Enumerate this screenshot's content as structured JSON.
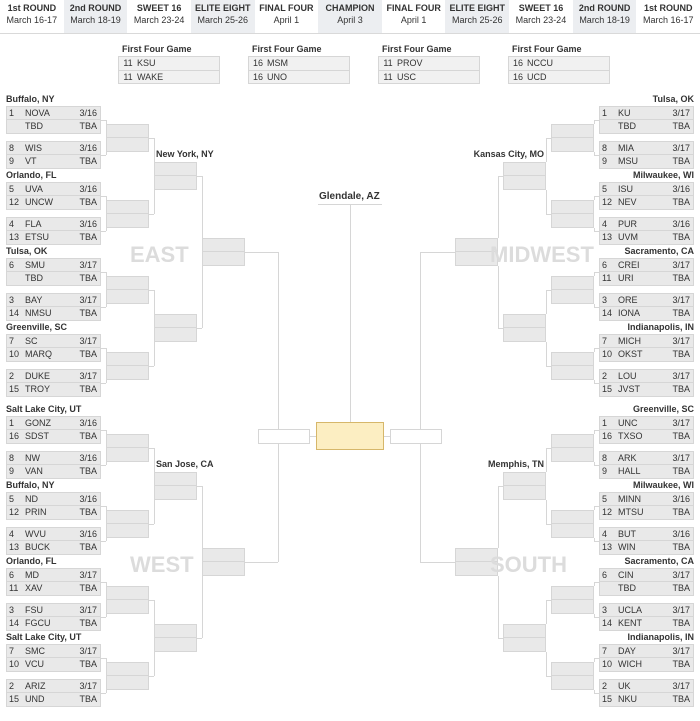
{
  "rounds": [
    {
      "label": "1st ROUND",
      "dates": "March 16-17"
    },
    {
      "label": "2nd ROUND",
      "dates": "March 18-19"
    },
    {
      "label": "SWEET 16",
      "dates": "March 23-24"
    },
    {
      "label": "ELITE EIGHT",
      "dates": "March 25-26"
    },
    {
      "label": "FINAL FOUR",
      "dates": "April 1"
    },
    {
      "label": "CHAMPION",
      "dates": "April 3"
    },
    {
      "label": "FINAL FOUR",
      "dates": "April 1"
    },
    {
      "label": "ELITE EIGHT",
      "dates": "March 25-26"
    },
    {
      "label": "SWEET 16",
      "dates": "March 23-24"
    },
    {
      "label": "2nd ROUND",
      "dates": "March 18-19"
    },
    {
      "label": "1st ROUND",
      "dates": "March 16-17"
    }
  ],
  "firstFour": [
    {
      "title": "First Four Game",
      "rows": [
        {
          "seed": "11",
          "team": "KSU"
        },
        {
          "seed": "11",
          "team": "WAKE"
        }
      ]
    },
    {
      "title": "First Four Game",
      "rows": [
        {
          "seed": "16",
          "team": "MSM"
        },
        {
          "seed": "16",
          "team": "UNO"
        }
      ]
    },
    {
      "title": "First Four Game",
      "rows": [
        {
          "seed": "11",
          "team": "PROV"
        },
        {
          "seed": "11",
          "team": "USC"
        }
      ]
    },
    {
      "title": "First Four Game",
      "rows": [
        {
          "seed": "16",
          "team": "NCCU"
        },
        {
          "seed": "16",
          "team": "UCD"
        }
      ]
    }
  ],
  "centerSite": "Glendale, AZ",
  "regions": {
    "east": {
      "label": "EAST",
      "sites": [
        "Buffalo, NY",
        "Orlando, FL",
        "Tulsa, OK",
        "Greenville, SC"
      ],
      "secondSite": "New York, NY",
      "games": [
        {
          "rows": [
            {
              "seed": "1",
              "team": "NOVA",
              "dt": "3/16"
            },
            {
              "seed": "",
              "team": "TBD",
              "dt": "TBA"
            }
          ]
        },
        {
          "rows": [
            {
              "seed": "8",
              "team": "WIS",
              "dt": "3/16"
            },
            {
              "seed": "9",
              "team": "VT",
              "dt": "TBA"
            }
          ]
        },
        {
          "rows": [
            {
              "seed": "5",
              "team": "UVA",
              "dt": "3/16"
            },
            {
              "seed": "12",
              "team": "UNCW",
              "dt": "TBA"
            }
          ]
        },
        {
          "rows": [
            {
              "seed": "4",
              "team": "FLA",
              "dt": "3/16"
            },
            {
              "seed": "13",
              "team": "ETSU",
              "dt": "TBA"
            }
          ]
        },
        {
          "rows": [
            {
              "seed": "6",
              "team": "SMU",
              "dt": "3/17"
            },
            {
              "seed": "",
              "team": "TBD",
              "dt": "TBA"
            }
          ]
        },
        {
          "rows": [
            {
              "seed": "3",
              "team": "BAY",
              "dt": "3/17"
            },
            {
              "seed": "14",
              "team": "NMSU",
              "dt": "TBA"
            }
          ]
        },
        {
          "rows": [
            {
              "seed": "7",
              "team": "SC",
              "dt": "3/17"
            },
            {
              "seed": "10",
              "team": "MARQ",
              "dt": "TBA"
            }
          ]
        },
        {
          "rows": [
            {
              "seed": "2",
              "team": "DUKE",
              "dt": "3/17"
            },
            {
              "seed": "15",
              "team": "TROY",
              "dt": "TBA"
            }
          ]
        }
      ]
    },
    "west": {
      "label": "WEST",
      "sites": [
        "Salt Lake City, UT",
        "Buffalo, NY",
        "Orlando, FL",
        "Salt Lake City, UT"
      ],
      "secondSite": "San Jose, CA",
      "games": [
        {
          "rows": [
            {
              "seed": "1",
              "team": "GONZ",
              "dt": "3/16"
            },
            {
              "seed": "16",
              "team": "SDST",
              "dt": "TBA"
            }
          ]
        },
        {
          "rows": [
            {
              "seed": "8",
              "team": "NW",
              "dt": "3/16"
            },
            {
              "seed": "9",
              "team": "VAN",
              "dt": "TBA"
            }
          ]
        },
        {
          "rows": [
            {
              "seed": "5",
              "team": "ND",
              "dt": "3/16"
            },
            {
              "seed": "12",
              "team": "PRIN",
              "dt": "TBA"
            }
          ]
        },
        {
          "rows": [
            {
              "seed": "4",
              "team": "WVU",
              "dt": "3/16"
            },
            {
              "seed": "13",
              "team": "BUCK",
              "dt": "TBA"
            }
          ]
        },
        {
          "rows": [
            {
              "seed": "6",
              "team": "MD",
              "dt": "3/17"
            },
            {
              "seed": "11",
              "team": "XAV",
              "dt": "TBA"
            }
          ]
        },
        {
          "rows": [
            {
              "seed": "3",
              "team": "FSU",
              "dt": "3/17"
            },
            {
              "seed": "14",
              "team": "FGCU",
              "dt": "TBA"
            }
          ]
        },
        {
          "rows": [
            {
              "seed": "7",
              "team": "SMC",
              "dt": "3/17"
            },
            {
              "seed": "10",
              "team": "VCU",
              "dt": "TBA"
            }
          ]
        },
        {
          "rows": [
            {
              "seed": "2",
              "team": "ARIZ",
              "dt": "3/17"
            },
            {
              "seed": "15",
              "team": "UND",
              "dt": "TBA"
            }
          ]
        }
      ]
    },
    "midwest": {
      "label": "MIDWEST",
      "sites": [
        "Tulsa, OK",
        "Milwaukee, WI",
        "Sacramento, CA",
        "Indianapolis, IN"
      ],
      "secondSite": "Kansas City, MO",
      "games": [
        {
          "rows": [
            {
              "seed": "1",
              "team": "KU",
              "dt": "3/17"
            },
            {
              "seed": "",
              "team": "TBD",
              "dt": "TBA"
            }
          ]
        },
        {
          "rows": [
            {
              "seed": "8",
              "team": "MIA",
              "dt": "3/17"
            },
            {
              "seed": "9",
              "team": "MSU",
              "dt": "TBA"
            }
          ]
        },
        {
          "rows": [
            {
              "seed": "5",
              "team": "ISU",
              "dt": "3/16"
            },
            {
              "seed": "12",
              "team": "NEV",
              "dt": "TBA"
            }
          ]
        },
        {
          "rows": [
            {
              "seed": "4",
              "team": "PUR",
              "dt": "3/16"
            },
            {
              "seed": "13",
              "team": "UVM",
              "dt": "TBA"
            }
          ]
        },
        {
          "rows": [
            {
              "seed": "6",
              "team": "CREI",
              "dt": "3/17"
            },
            {
              "seed": "11",
              "team": "URI",
              "dt": "TBA"
            }
          ]
        },
        {
          "rows": [
            {
              "seed": "3",
              "team": "ORE",
              "dt": "3/17"
            },
            {
              "seed": "14",
              "team": "IONA",
              "dt": "TBA"
            }
          ]
        },
        {
          "rows": [
            {
              "seed": "7",
              "team": "MICH",
              "dt": "3/17"
            },
            {
              "seed": "10",
              "team": "OKST",
              "dt": "TBA"
            }
          ]
        },
        {
          "rows": [
            {
              "seed": "2",
              "team": "LOU",
              "dt": "3/17"
            },
            {
              "seed": "15",
              "team": "JVST",
              "dt": "TBA"
            }
          ]
        }
      ]
    },
    "south": {
      "label": "SOUTH",
      "sites": [
        "Greenville, SC",
        "Milwaukee, WI",
        "Sacramento, CA",
        "Indianapolis, IN"
      ],
      "secondSite": "Memphis, TN",
      "games": [
        {
          "rows": [
            {
              "seed": "1",
              "team": "UNC",
              "dt": "3/17"
            },
            {
              "seed": "16",
              "team": "TXSO",
              "dt": "TBA"
            }
          ]
        },
        {
          "rows": [
            {
              "seed": "8",
              "team": "ARK",
              "dt": "3/17"
            },
            {
              "seed": "9",
              "team": "HALL",
              "dt": "TBA"
            }
          ]
        },
        {
          "rows": [
            {
              "seed": "5",
              "team": "MINN",
              "dt": "3/16"
            },
            {
              "seed": "12",
              "team": "MTSU",
              "dt": "TBA"
            }
          ]
        },
        {
          "rows": [
            {
              "seed": "4",
              "team": "BUT",
              "dt": "3/16"
            },
            {
              "seed": "13",
              "team": "WIN",
              "dt": "TBA"
            }
          ]
        },
        {
          "rows": [
            {
              "seed": "6",
              "team": "CIN",
              "dt": "3/17"
            },
            {
              "seed": "",
              "team": "TBD",
              "dt": "TBA"
            }
          ]
        },
        {
          "rows": [
            {
              "seed": "3",
              "team": "UCLA",
              "dt": "3/17"
            },
            {
              "seed": "14",
              "team": "KENT",
              "dt": "TBA"
            }
          ]
        },
        {
          "rows": [
            {
              "seed": "7",
              "team": "DAY",
              "dt": "3/17"
            },
            {
              "seed": "10",
              "team": "WICH",
              "dt": "TBA"
            }
          ]
        },
        {
          "rows": [
            {
              "seed": "2",
              "team": "UK",
              "dt": "3/17"
            },
            {
              "seed": "15",
              "team": "NKU",
              "dt": "TBA"
            }
          ]
        }
      ]
    }
  }
}
